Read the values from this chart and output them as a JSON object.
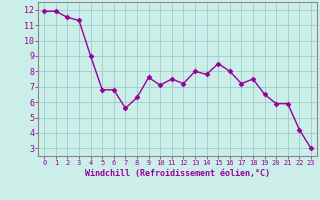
{
  "x": [
    0,
    1,
    2,
    3,
    4,
    5,
    6,
    7,
    8,
    9,
    10,
    11,
    12,
    13,
    14,
    15,
    16,
    17,
    18,
    19,
    20,
    21,
    22,
    23
  ],
  "y": [
    11.9,
    11.9,
    11.5,
    11.3,
    9.0,
    6.8,
    6.8,
    5.6,
    6.3,
    7.6,
    7.1,
    7.5,
    7.2,
    8.0,
    7.8,
    8.5,
    8.0,
    7.2,
    7.5,
    6.5,
    5.9,
    5.9,
    4.2,
    3.0
  ],
  "line_color": "#990099",
  "marker": "D",
  "marker_size": 2.5,
  "bg_color": "#cceee8",
  "grid_color": "#99cccc",
  "xlabel": "Windchill (Refroidissement éolien,°C)",
  "xlabel_color": "#990099",
  "tick_color": "#990099",
  "ylim": [
    2.5,
    12.5
  ],
  "xlim": [
    -0.5,
    23.5
  ],
  "yticks": [
    3,
    4,
    5,
    6,
    7,
    8,
    9,
    10,
    11,
    12
  ],
  "xticks": [
    0,
    1,
    2,
    3,
    4,
    5,
    6,
    7,
    8,
    9,
    10,
    11,
    12,
    13,
    14,
    15,
    16,
    17,
    18,
    19,
    20,
    21,
    22,
    23
  ],
  "spine_color": "#888888",
  "line_width": 1.0
}
